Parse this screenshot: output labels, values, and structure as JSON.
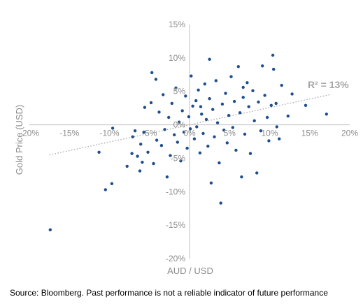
{
  "chart_data": {
    "type": "scatter",
    "xlabel": "AUD / USD",
    "ylabel": "Gold Price (USD)",
    "xlim": [
      -0.2,
      0.2
    ],
    "ylim": [
      -0.2,
      0.15
    ],
    "x_ticks": [
      "-20%",
      "-15%",
      "-10%",
      "-5%",
      "0%",
      "5%",
      "10%",
      "15%",
      "20%"
    ],
    "y_ticks": [
      "15%",
      "10%",
      "5%",
      "0%",
      "-5%",
      "-10%",
      "-15%",
      "-20%"
    ],
    "annotation": "R² = 13%",
    "trendline": {
      "style": "dotted",
      "from": [
        -0.175,
        -0.045
      ],
      "to": [
        0.175,
        0.045
      ]
    },
    "marker_color": "#1f4e8c",
    "trend_color": "#a6a6a6",
    "grid": false,
    "points": [
      [
        -0.174,
        -0.157
      ],
      [
        -0.113,
        -0.041
      ],
      [
        -0.105,
        -0.097
      ],
      [
        -0.097,
        -0.088
      ],
      [
        -0.096,
        -0.005
      ],
      [
        -0.078,
        -0.062
      ],
      [
        -0.072,
        -0.043
      ],
      [
        -0.071,
        -0.018
      ],
      [
        -0.068,
        -0.009
      ],
      [
        -0.065,
        -0.047
      ],
      [
        -0.062,
        -0.069
      ],
      [
        -0.061,
        -0.029
      ],
      [
        -0.059,
        -0.056
      ],
      [
        -0.057,
        -0.011
      ],
      [
        -0.056,
        0.026
      ],
      [
        -0.052,
        -0.041
      ],
      [
        -0.048,
        0.033
      ],
      [
        -0.045,
        -0.058
      ],
      [
        -0.042,
        0.068
      ],
      [
        -0.041,
        -0.023
      ],
      [
        -0.038,
        0.019
      ],
      [
        -0.035,
        -0.031
      ],
      [
        -0.033,
        0.045
      ],
      [
        -0.031,
        -0.007
      ],
      [
        -0.028,
        -0.078
      ],
      [
        -0.026,
        0.011
      ],
      [
        -0.024,
        -0.046
      ],
      [
        -0.022,
        0.032
      ],
      [
        -0.019,
        -0.015
      ],
      [
        -0.017,
        0.055
      ],
      [
        -0.015,
        -0.026
      ],
      [
        -0.013,
        0.004
      ],
      [
        -0.011,
        -0.054
      ],
      [
        -0.009,
        0.021
      ],
      [
        -0.007,
        -0.011
      ],
      [
        -0.005,
        0.043
      ],
      [
        -0.003,
        -0.035
      ],
      [
        -0.001,
        0.012
      ],
      [
        0.001,
        -0.006
      ],
      [
        0.002,
        0.073
      ],
      [
        0.004,
        0.028
      ],
      [
        0.006,
        -0.021
      ],
      [
        0.008,
        0.036
      ],
      [
        0.009,
        -0.003
      ],
      [
        0.011,
        0.052
      ],
      [
        0.013,
        -0.042
      ],
      [
        0.015,
        0.016
      ],
      [
        0.017,
        -0.013
      ],
      [
        0.019,
        0.061
      ],
      [
        0.021,
        0.008
      ],
      [
        0.023,
        -0.032
      ],
      [
        0.025,
        0.039
      ],
      [
        0.027,
        -0.087
      ],
      [
        0.029,
        0.023
      ],
      [
        0.031,
        -0.018
      ],
      [
        0.033,
        0.066
      ],
      [
        0.035,
        0.003
      ],
      [
        0.037,
        -0.057
      ],
      [
        0.039,
        -0.117
      ],
      [
        0.041,
        0.031
      ],
      [
        0.043,
        -0.008
      ],
      [
        0.045,
        0.047
      ],
      [
        0.047,
        -0.027
      ],
      [
        0.049,
        0.014
      ],
      [
        0.052,
        0.072
      ],
      [
        0.054,
        -0.004
      ],
      [
        0.056,
        0.035
      ],
      [
        0.058,
        -0.038
      ],
      [
        0.061,
        0.087
      ],
      [
        0.063,
        0.018
      ],
      [
        0.065,
        -0.078
      ],
      [
        0.067,
        0.041
      ],
      [
        0.069,
        -0.014
      ],
      [
        0.072,
        0.063
      ],
      [
        0.074,
        0.027
      ],
      [
        0.076,
        -0.043
      ],
      [
        0.079,
        0.051
      ],
      [
        0.081,
        0.006
      ],
      [
        0.084,
        -0.072
      ],
      [
        0.086,
        0.034
      ],
      [
        0.089,
        -0.009
      ],
      [
        0.091,
        0.088
      ],
      [
        0.094,
        0.044
      ],
      [
        0.097,
        0.011
      ],
      [
        0.099,
        -0.024
      ],
      [
        0.102,
        0.029
      ],
      [
        0.104,
        0.104
      ],
      [
        0.105,
        0.083
      ],
      [
        0.108,
        0.032
      ],
      [
        0.109,
        -0.003
      ],
      [
        0.112,
        -0.021
      ],
      [
        0.115,
        0.059
      ],
      [
        0.123,
        0.013
      ],
      [
        0.128,
        0.046
      ],
      [
        0.145,
        0.029
      ],
      [
        0.171,
        0.016
      ],
      [
        0.025,
        0.098
      ],
      [
        -0.047,
        0.078
      ],
      [
        0.067,
        0.056
      ],
      [
        0.014,
        0.027
      ]
    ]
  },
  "footer": {
    "source": "Source: Bloomberg.  Past performance is not a reliable indicator of future performance"
  }
}
